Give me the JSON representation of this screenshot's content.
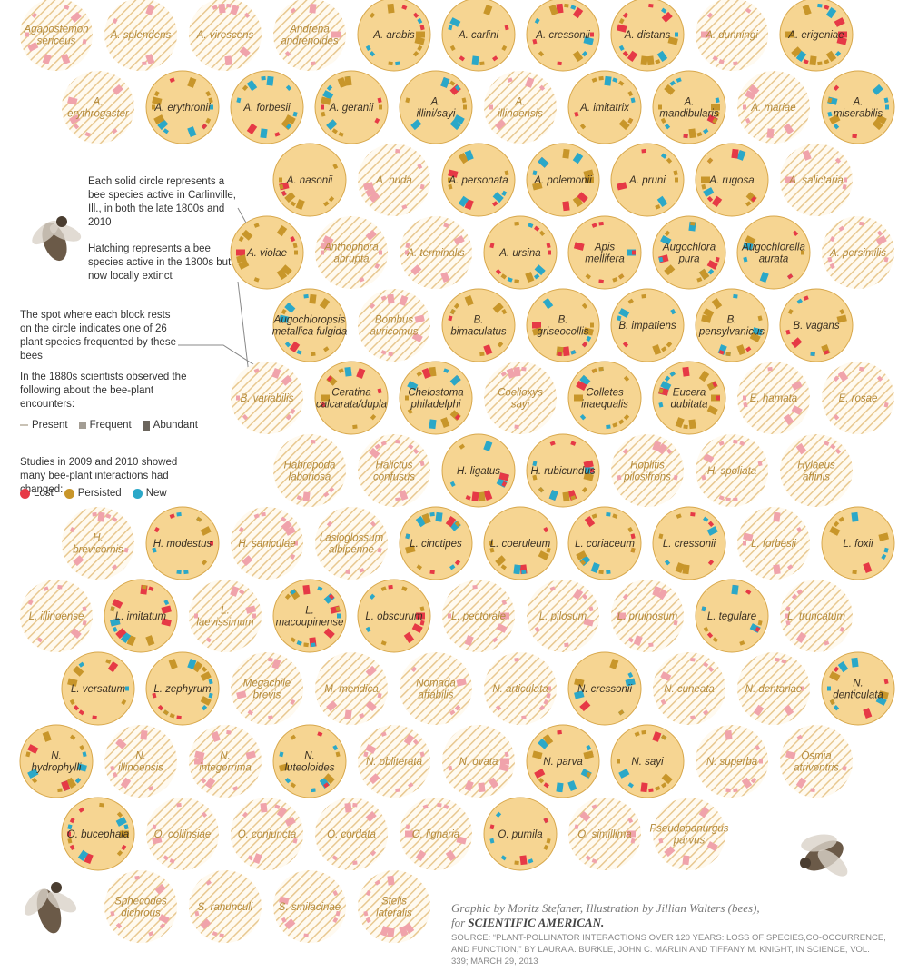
{
  "chart_data": {
    "type": "circle-grid",
    "legend": {
      "solid_note": "Each solid circle represents a bee species active in Carlinville, Ill., in both the late 1800s and 2010",
      "hatch_note": "Hatching represents a bee species active in the 1800s but now locally extinct",
      "block_note": "The spot where each block rests on the circle indicates one of 26 plant species frequented by these bees",
      "observed_note": "In the 1880s scientists observed the following about the bee-plant encounters:",
      "observed_items": [
        "Present",
        "Frequent",
        "Abundant"
      ],
      "studies_note": "Studies in 2009 and 2010 showed many bee-plant interactions had changed:",
      "status_items": [
        {
          "label": "Lost",
          "color": "#e63946"
        },
        {
          "label": "Persisted",
          "color": "#c8962a"
        },
        {
          "label": "New",
          "color": "#2ba8c8"
        }
      ]
    },
    "colors": {
      "solid_fill": "#f6d592",
      "solid_stroke": "#d8a84c",
      "hatch": "#e8c890",
      "lost": "#e63946",
      "persisted": "#c8962a",
      "new": "#2ba8c8"
    },
    "species": [
      {
        "name": "Agapostemon sericeus",
        "status": "extinct",
        "row": 0,
        "col": 0
      },
      {
        "name": "A. splendens",
        "status": "extinct",
        "row": 0,
        "col": 1
      },
      {
        "name": "A. virescens",
        "status": "extinct",
        "row": 0,
        "col": 2
      },
      {
        "name": "Andrena andrenoides",
        "status": "extinct",
        "row": 0,
        "col": 3
      },
      {
        "name": "A. arabis",
        "status": "active",
        "row": 0,
        "col": 4
      },
      {
        "name": "A. carlini",
        "status": "active",
        "row": 0,
        "col": 5
      },
      {
        "name": "A. cressonii",
        "status": "active",
        "row": 0,
        "col": 6
      },
      {
        "name": "A. distans",
        "status": "active",
        "row": 0,
        "col": 7
      },
      {
        "name": "A. dunningi",
        "status": "extinct",
        "row": 0,
        "col": 8
      },
      {
        "name": "A. erigeniae",
        "status": "active",
        "row": 0,
        "col": 9
      },
      {
        "name": "A. erythrogaster",
        "status": "extinct",
        "row": 1,
        "col": 0
      },
      {
        "name": "A. erythronii",
        "status": "active",
        "row": 1,
        "col": 1
      },
      {
        "name": "A. forbesii",
        "status": "active",
        "row": 1,
        "col": 2
      },
      {
        "name": "A. geranii",
        "status": "active",
        "row": 1,
        "col": 3
      },
      {
        "name": "A. illini/sayi",
        "status": "active",
        "row": 1,
        "col": 4
      },
      {
        "name": "A. illinoensis",
        "status": "extinct",
        "row": 1,
        "col": 5
      },
      {
        "name": "A. imitatrix",
        "status": "active",
        "row": 1,
        "col": 6
      },
      {
        "name": "A. mandibularis",
        "status": "active",
        "row": 1,
        "col": 7
      },
      {
        "name": "A. mariae",
        "status": "extinct",
        "row": 1,
        "col": 8
      },
      {
        "name": "A. miserabilis",
        "status": "active",
        "row": 1,
        "col": 9
      },
      {
        "name": "A. nasonii",
        "status": "active",
        "row": 2,
        "col": 3
      },
      {
        "name": "A. nuda",
        "status": "extinct",
        "row": 2,
        "col": 4
      },
      {
        "name": "A. personata",
        "status": "active",
        "row": 2,
        "col": 5
      },
      {
        "name": "A. polemonii",
        "status": "active",
        "row": 2,
        "col": 6
      },
      {
        "name": "A. pruni",
        "status": "active",
        "row": 2,
        "col": 7
      },
      {
        "name": "A. rugosa",
        "status": "active",
        "row": 2,
        "col": 8
      },
      {
        "name": "A. salictaria",
        "status": "extinct",
        "row": 2,
        "col": 9
      },
      {
        "name": "A. violae",
        "status": "active",
        "row": 3,
        "col": 2
      },
      {
        "name": "Anthophora abrupta",
        "status": "extinct",
        "row": 3,
        "col": 3
      },
      {
        "name": "A. terminalis",
        "status": "extinct",
        "row": 3,
        "col": 4
      },
      {
        "name": "A. ursina",
        "status": "active",
        "row": 3,
        "col": 5
      },
      {
        "name": "Apis mellifera",
        "status": "active",
        "row": 3,
        "col": 6
      },
      {
        "name": "Augochlora pura",
        "status": "active",
        "row": 3,
        "col": 7
      },
      {
        "name": "Augochlorella aurata",
        "status": "active",
        "row": 3,
        "col": 8
      },
      {
        "name": "A. persimilis",
        "status": "extinct",
        "row": 3,
        "col": 9
      },
      {
        "name": "Augochloropsis metallica fulgida",
        "status": "active",
        "row": 4,
        "col": 3
      },
      {
        "name": "Bombus auricomus",
        "status": "extinct",
        "row": 4,
        "col": 4
      },
      {
        "name": "B. bimaculatus",
        "status": "active",
        "row": 4,
        "col": 5
      },
      {
        "name": "B. griseocollis",
        "status": "active",
        "row": 4,
        "col": 6
      },
      {
        "name": "B. impatiens",
        "status": "active",
        "row": 4,
        "col": 7
      },
      {
        "name": "B. pensylvanicus",
        "status": "active",
        "row": 4,
        "col": 8
      },
      {
        "name": "B. vagans",
        "status": "active",
        "row": 4,
        "col": 9
      },
      {
        "name": "B. variabilis",
        "status": "extinct",
        "row": 5,
        "col": 2
      },
      {
        "name": "Ceratina calcarata/dupla",
        "status": "active",
        "row": 5,
        "col": 3
      },
      {
        "name": "Chelostoma philadelphi",
        "status": "active",
        "row": 5,
        "col": 4
      },
      {
        "name": "Coelioxys sayi",
        "status": "extinct",
        "row": 5,
        "col": 5
      },
      {
        "name": "Colletes inaequalis",
        "status": "active",
        "row": 5,
        "col": 6
      },
      {
        "name": "Eucera dubitata",
        "status": "active",
        "row": 5,
        "col": 7
      },
      {
        "name": "E. hamata",
        "status": "extinct",
        "row": 5,
        "col": 8
      },
      {
        "name": "E. rosae",
        "status": "extinct",
        "row": 5,
        "col": 9
      },
      {
        "name": "Habropoda laboriosa",
        "status": "extinct",
        "row": 6,
        "col": 3
      },
      {
        "name": "Halictus confusus",
        "status": "extinct",
        "row": 6,
        "col": 4
      },
      {
        "name": "H. ligatus",
        "status": "active",
        "row": 6,
        "col": 5
      },
      {
        "name": "H. rubicundus",
        "status": "active",
        "row": 6,
        "col": 6
      },
      {
        "name": "Hoplitis pilosifrons",
        "status": "extinct",
        "row": 6,
        "col": 7
      },
      {
        "name": "H. spoliata",
        "status": "extinct",
        "row": 6,
        "col": 8
      },
      {
        "name": "Hylaeus affinis",
        "status": "extinct",
        "row": 6,
        "col": 9
      },
      {
        "name": "H. brevicornis",
        "status": "extinct",
        "row": 7,
        "col": 0
      },
      {
        "name": "H. modestus",
        "status": "active",
        "row": 7,
        "col": 1
      },
      {
        "name": "H. saniculae",
        "status": "extinct",
        "row": 7,
        "col": 2
      },
      {
        "name": "Lasioglossum albipenne",
        "status": "extinct",
        "row": 7,
        "col": 3
      },
      {
        "name": "L. cinctipes",
        "status": "active",
        "row": 7,
        "col": 4
      },
      {
        "name": "L. coeruleum",
        "status": "active",
        "row": 7,
        "col": 5
      },
      {
        "name": "L. coriaceum",
        "status": "active",
        "row": 7,
        "col": 6
      },
      {
        "name": "L. cressonii",
        "status": "active",
        "row": 7,
        "col": 7
      },
      {
        "name": "L. forbesii",
        "status": "extinct",
        "row": 7,
        "col": 8
      },
      {
        "name": "L. foxii",
        "status": "active",
        "row": 7,
        "col": 9
      },
      {
        "name": "L. illinoense",
        "status": "extinct",
        "row": 8,
        "col": 0
      },
      {
        "name": "L. imitatum",
        "status": "active",
        "row": 8,
        "col": 1
      },
      {
        "name": "L. laevissimum",
        "status": "extinct",
        "row": 8,
        "col": 2
      },
      {
        "name": "L. macoupinense",
        "status": "active",
        "row": 8,
        "col": 3
      },
      {
        "name": "L. obscurum",
        "status": "active",
        "row": 8,
        "col": 4
      },
      {
        "name": "L. pectorale",
        "status": "extinct",
        "row": 8,
        "col": 5
      },
      {
        "name": "L. pilosum",
        "status": "extinct",
        "row": 8,
        "col": 6
      },
      {
        "name": "L. pruinosum",
        "status": "extinct",
        "row": 8,
        "col": 7
      },
      {
        "name": "L. tegulare",
        "status": "active",
        "row": 8,
        "col": 8
      },
      {
        "name": "L. truncatum",
        "status": "extinct",
        "row": 8,
        "col": 9
      },
      {
        "name": "L. versatum",
        "status": "active",
        "row": 9,
        "col": 0
      },
      {
        "name": "L. zephyrum",
        "status": "active",
        "row": 9,
        "col": 1
      },
      {
        "name": "Megachile brevis",
        "status": "extinct",
        "row": 9,
        "col": 2
      },
      {
        "name": "M. mendica",
        "status": "extinct",
        "row": 9,
        "col": 3
      },
      {
        "name": "Nomada affabilis",
        "status": "extinct",
        "row": 9,
        "col": 4
      },
      {
        "name": "N. articulata",
        "status": "extinct",
        "row": 9,
        "col": 5
      },
      {
        "name": "N. cressonii",
        "status": "active",
        "row": 9,
        "col": 6
      },
      {
        "name": "N. cuneata",
        "status": "extinct",
        "row": 9,
        "col": 7
      },
      {
        "name": "N. dentariae",
        "status": "extinct",
        "row": 9,
        "col": 8
      },
      {
        "name": "N. denticulata",
        "status": "active",
        "row": 9,
        "col": 9
      },
      {
        "name": "N. hydrophylli",
        "status": "active",
        "row": 10,
        "col": 0
      },
      {
        "name": "N. illinoensis",
        "status": "extinct",
        "row": 10,
        "col": 1
      },
      {
        "name": "N. integerrima",
        "status": "extinct",
        "row": 10,
        "col": 2
      },
      {
        "name": "N. luteoloides",
        "status": "active",
        "row": 10,
        "col": 3
      },
      {
        "name": "N. obliterata",
        "status": "extinct",
        "row": 10,
        "col": 4
      },
      {
        "name": "N. ovata",
        "status": "extinct",
        "row": 10,
        "col": 5
      },
      {
        "name": "N. parva",
        "status": "active",
        "row": 10,
        "col": 6
      },
      {
        "name": "N. sayi",
        "status": "active",
        "row": 10,
        "col": 7
      },
      {
        "name": "N. superba",
        "status": "extinct",
        "row": 10,
        "col": 8
      },
      {
        "name": "Osmia atriventris",
        "status": "extinct",
        "row": 10,
        "col": 9
      },
      {
        "name": "O. bucephala",
        "status": "active",
        "row": 11,
        "col": 0
      },
      {
        "name": "O. collinsiae",
        "status": "extinct",
        "row": 11,
        "col": 1
      },
      {
        "name": "O. conjuncta",
        "status": "extinct",
        "row": 11,
        "col": 2
      },
      {
        "name": "O. cordata",
        "status": "extinct",
        "row": 11,
        "col": 3
      },
      {
        "name": "O. lignaria",
        "status": "extinct",
        "row": 11,
        "col": 4
      },
      {
        "name": "O. pumila",
        "status": "active",
        "row": 11,
        "col": 5
      },
      {
        "name": "O. simillima",
        "status": "extinct",
        "row": 11,
        "col": 6
      },
      {
        "name": "Pseudopanurgus parvus",
        "status": "extinct",
        "row": 11,
        "col": 7
      },
      {
        "name": "Sphecodes dichrous",
        "status": "extinct",
        "row": 12,
        "col": 1
      },
      {
        "name": "S. ranunculi",
        "status": "extinct",
        "row": 12,
        "col": 2
      },
      {
        "name": "S. smilacinae",
        "status": "extinct",
        "row": 12,
        "col": 3
      },
      {
        "name": "Stelis lateralis",
        "status": "extinct",
        "row": 12,
        "col": 4
      }
    ]
  },
  "credit": {
    "line1": "Graphic by Moritz Stefaner, Illustration by Jillian Walters (bees),",
    "line2_prefix": "for",
    "line2_brand": "SCIENTIFIC AMERICAN.",
    "source": "SOURCE: “PLANT-POLLINATOR INTERACTIONS OVER 120 YEARS: LOSS OF SPECIES,CO-OCCURRENCE, AND FUNCTION,” BY LAURA A. BURKLE, JOHN C. MARLIN AND TIFFANY M. KNIGHT, IN SCIENCE, VOL. 339; MARCH 29, 2013"
  }
}
